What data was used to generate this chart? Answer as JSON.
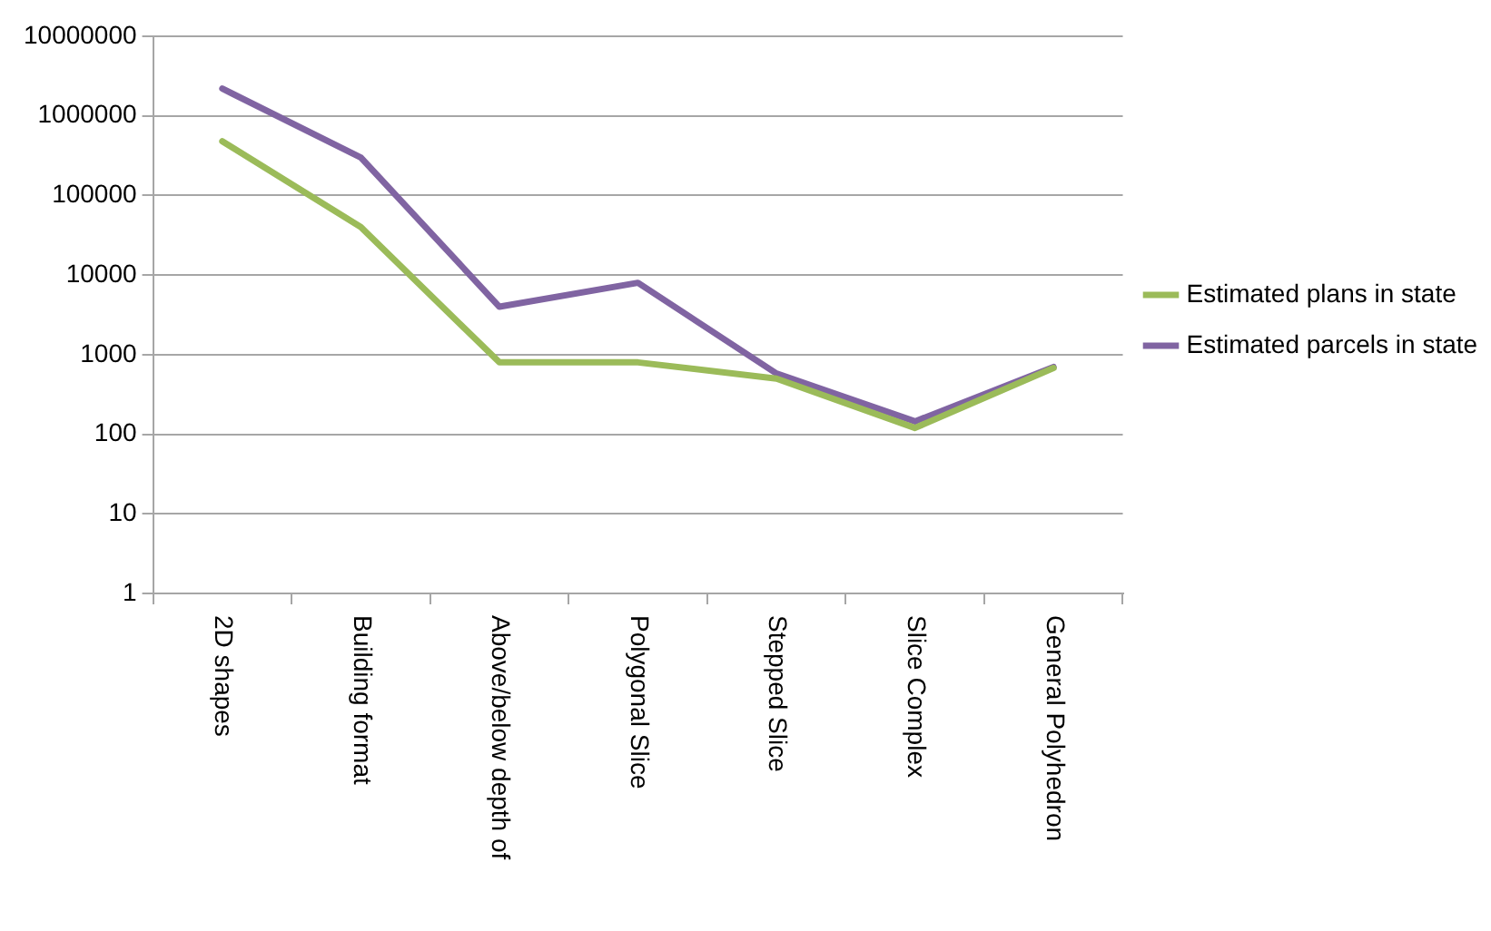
{
  "chart_data": {
    "type": "line",
    "categories": [
      "2D shapes",
      "Building format",
      "Above/below depth of",
      "Polygonal Slice",
      "Stepped Slice",
      "Slice Complex",
      "General Polyhedron"
    ],
    "series": [
      {
        "name": "Estimated plans in state",
        "color": "#9bbb59",
        "values": [
          480000,
          40000,
          800,
          800,
          500,
          120,
          680
        ]
      },
      {
        "name": "Estimated parcels in state",
        "color": "#8064a2",
        "values": [
          2200000,
          300000,
          4000,
          8000,
          580,
          145,
          700
        ]
      }
    ],
    "log": "y",
    "ylim": [
      1,
      10000000
    ],
    "yticks": [
      1,
      10,
      100,
      1000,
      10000,
      100000,
      1000000,
      10000000
    ],
    "grid": "y",
    "legend": "right",
    "marker": "none",
    "line_style": "solid"
  }
}
